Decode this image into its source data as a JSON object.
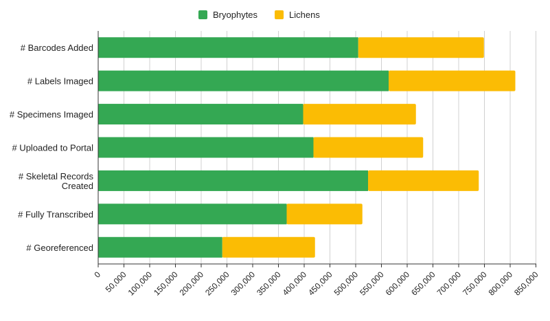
{
  "chart_data": {
    "type": "bar",
    "orientation": "horizontal",
    "stacked": true,
    "title": "",
    "xlabel": "",
    "ylabel": "",
    "categories": [
      "# Barcodes Added",
      "# Labels Imaged",
      "# Specimens Imaged",
      "# Uploaded to Portal",
      "# Skeletal Records Created",
      "# Fully Transcribed",
      "# Georeferenced"
    ],
    "series": [
      {
        "name": "Bryophytes",
        "color": "#34a853",
        "values": [
          505000,
          564000,
          398000,
          418000,
          524000,
          366000,
          241000
        ]
      },
      {
        "name": "Lichens",
        "color": "#fbbc04",
        "values": [
          244000,
          246000,
          219000,
          213000,
          215000,
          147000,
          180000
        ]
      }
    ],
    "xlim": [
      0,
      850000
    ],
    "xticks": [
      0,
      50000,
      100000,
      150000,
      200000,
      250000,
      300000,
      350000,
      400000,
      450000,
      500000,
      550000,
      600000,
      650000,
      700000,
      750000,
      800000,
      850000
    ],
    "xtick_labels": [
      "0",
      "50,000",
      "100,000",
      "150,000",
      "200,000",
      "250,000",
      "300,000",
      "350,000",
      "400,000",
      "450,000",
      "500,000",
      "550,000",
      "600,000",
      "650,000",
      "700,000",
      "750,000",
      "800,000",
      "850,000"
    ],
    "grid": true,
    "legend_position": "top"
  }
}
